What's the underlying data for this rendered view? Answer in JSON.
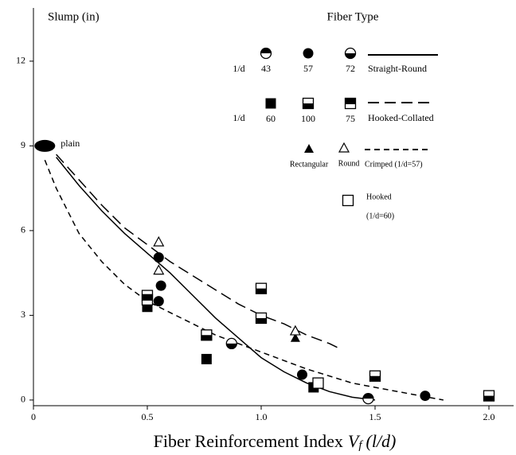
{
  "chart_data": {
    "type": "scatter",
    "y_label": "Slump (in)",
    "x_label": {
      "text": "Fiber Reinforcement Index",
      "var": "V",
      "sub": "f",
      "paren": "(l/d)"
    },
    "xlim": [
      0,
      2.1
    ],
    "ylim": [
      -0.2,
      13.8
    ],
    "xticks": [
      0,
      0.5,
      {
        "value": 1,
        "label": "1.0"
      },
      1.5,
      {
        "value": 2,
        "label": "2.0"
      }
    ],
    "yticks": [
      0,
      3,
      6,
      9,
      12
    ],
    "legend": {
      "title": "Fiber Type",
      "prefixes": [
        "1/d",
        "1/d"
      ]
    },
    "series": [
      {
        "name": "43",
        "marker": "circle-top",
        "color": "#000",
        "x": [
          1.47
        ],
        "values": [
          0.05
        ]
      },
      {
        "name": "57",
        "marker": "circle",
        "color": "#000",
        "x": [
          0.55,
          0.56,
          0.55,
          1.18,
          1.72
        ],
        "values": [
          5.05,
          4.05,
          3.5,
          0.9,
          0.15
        ]
      },
      {
        "name": "72",
        "marker": "circle-bottom",
        "color": "#000",
        "x": [
          0.87
        ],
        "values": [
          2.0
        ]
      },
      {
        "name": "60",
        "marker": "square",
        "color": "#000",
        "x": [
          0.5,
          0.76,
          1.23
        ],
        "values": [
          3.3,
          1.45,
          0.45
        ]
      },
      {
        "name": "100",
        "marker": "square-bottom",
        "color": "#000",
        "x": [
          0.5,
          1.0,
          1.0,
          0.76,
          2.0,
          1.5
        ],
        "values": [
          3.7,
          3.95,
          2.9,
          2.3,
          0.15,
          0.85
        ]
      },
      {
        "name": "75",
        "marker": "square-top",
        "color": "#000",
        "x": [
          0.5
        ],
        "values": [
          3.55
        ]
      },
      {
        "name": "Rectangular",
        "marker": "triangle",
        "color": "#000",
        "x": [
          1.15
        ],
        "values": [
          2.2
        ]
      },
      {
        "name": "Round",
        "marker": "triangle-open",
        "color": "#000",
        "x": [
          0.55,
          0.55,
          1.15
        ],
        "values": [
          5.6,
          4.6,
          2.45
        ]
      },
      {
        "name": "Hooked",
        "note": "(1/d=60)",
        "marker": "square-open",
        "color": "#000",
        "x": [
          1.25
        ],
        "values": [
          0.6
        ]
      },
      {
        "name": "plain",
        "marker": "ellipse",
        "color": "#000",
        "x": [
          0.05
        ],
        "values": [
          9.0
        ]
      }
    ],
    "lines": [
      {
        "name": "Straight-Round",
        "dash": "solid",
        "color": "#000",
        "x": [
          0.1,
          0.2,
          0.3,
          0.4,
          0.5,
          0.6,
          0.7,
          0.8,
          0.9,
          1.0,
          1.1,
          1.2,
          1.3,
          1.4,
          1.5
        ],
        "values": [
          8.6,
          7.6,
          6.7,
          5.9,
          5.2,
          4.5,
          3.7,
          2.9,
          2.2,
          1.5,
          1.0,
          0.6,
          0.3,
          0.1,
          0.0
        ]
      },
      {
        "name": "Hooked-Collated",
        "dash": "long",
        "color": "#000",
        "x": [
          0.1,
          0.2,
          0.3,
          0.4,
          0.5,
          0.6,
          0.7,
          0.8,
          0.9,
          1.0,
          1.1,
          1.2,
          1.3,
          1.35
        ],
        "values": [
          8.7,
          7.8,
          6.9,
          6.1,
          5.5,
          4.9,
          4.4,
          3.9,
          3.4,
          3.0,
          2.7,
          2.3,
          2.0,
          1.8
        ]
      },
      {
        "name": "Crimped (1/d=57)",
        "dash": "short",
        "color": "#000",
        "x": [
          0.05,
          0.1,
          0.2,
          0.3,
          0.4,
          0.5,
          0.6,
          0.8,
          1.0,
          1.2,
          1.4,
          1.6,
          1.8
        ],
        "values": [
          8.5,
          7.5,
          5.9,
          4.9,
          4.1,
          3.5,
          3.1,
          2.3,
          1.7,
          1.1,
          0.6,
          0.3,
          0.0
        ]
      }
    ]
  }
}
